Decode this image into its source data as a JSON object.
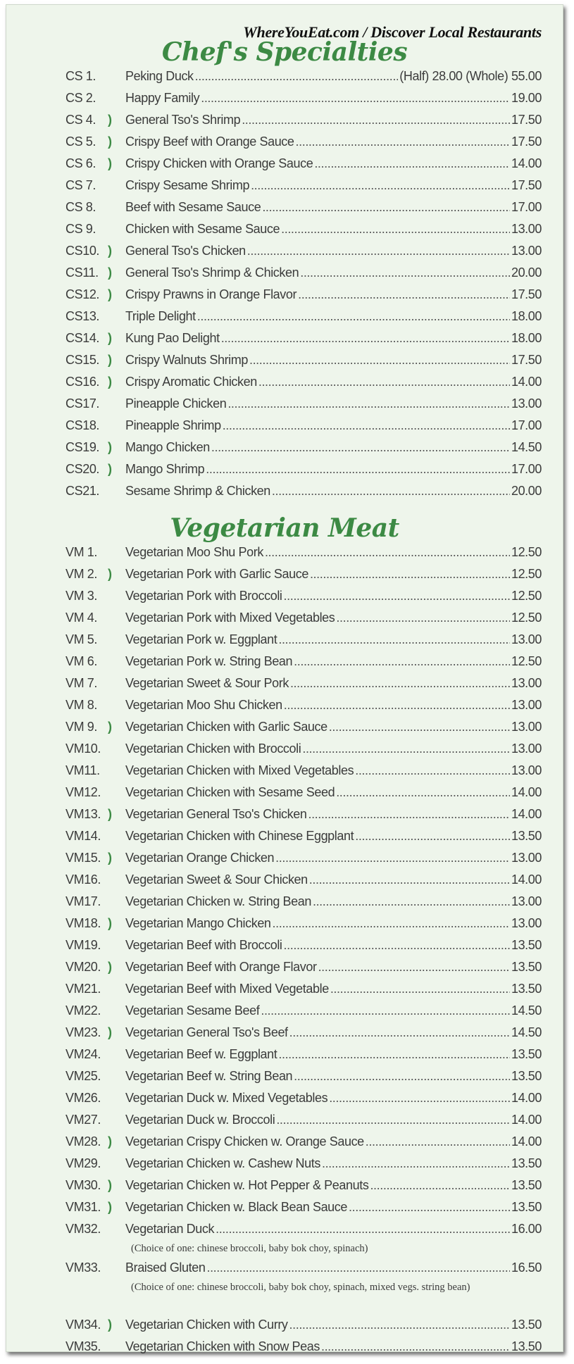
{
  "site_banner": "WhereYouEat.com / Discover Local Restaurants",
  "sections": [
    {
      "title": "Chef's Specialties",
      "items": [
        {
          "code": "CS  1.",
          "name": "Peking Duck",
          "price": "(Half) 28.00  (Whole) 55.00",
          "spicy": false
        },
        {
          "code": "CS  2.",
          "name": "Happy Family",
          "price": "19.00",
          "spicy": false
        },
        {
          "code": "CS  4.",
          "name": "General Tso's Shrimp",
          "price": "17.50",
          "spicy": true
        },
        {
          "code": "CS  5.",
          "name": "Crispy Beef with Orange Sauce",
          "price": "17.50",
          "spicy": true
        },
        {
          "code": "CS  6.",
          "name": "Crispy Chicken with Orange Sauce",
          "price": "14.00",
          "spicy": true
        },
        {
          "code": "CS  7.",
          "name": "Crispy Sesame Shrimp",
          "price": "17.50",
          "spicy": false
        },
        {
          "code": "CS  8.",
          "name": "Beef with Sesame Sauce",
          "price": "17.00",
          "spicy": false
        },
        {
          "code": "CS  9.",
          "name": "Chicken with Sesame Sauce",
          "price": "13.00",
          "spicy": false
        },
        {
          "code": "CS10.",
          "name": "General Tso's Chicken",
          "price": "13.00",
          "spicy": true
        },
        {
          "code": "CS11.",
          "name": "General Tso's Shrimp & Chicken",
          "price": "20.00",
          "spicy": true
        },
        {
          "code": "CS12.",
          "name": "Crispy Prawns in Orange Flavor",
          "price": "17.50",
          "spicy": true
        },
        {
          "code": "CS13.",
          "name": "Triple Delight",
          "price": "18.00",
          "spicy": false
        },
        {
          "code": "CS14.",
          "name": "Kung Pao Delight",
          "price": "18.00",
          "spicy": true
        },
        {
          "code": "CS15.",
          "name": "Crispy Walnuts Shrimp",
          "price": "17.50",
          "spicy": true
        },
        {
          "code": "CS16.",
          "name": "Crispy Aromatic Chicken",
          "price": "14.00",
          "spicy": true
        },
        {
          "code": "CS17.",
          "name": "Pineapple Chicken",
          "price": "13.00",
          "spicy": false
        },
        {
          "code": "CS18.",
          "name": "Pineapple Shrimp",
          "price": "17.00",
          "spicy": false
        },
        {
          "code": "CS19.",
          "name": "Mango Chicken",
          "price": "14.50",
          "spicy": true
        },
        {
          "code": "CS20.",
          "name": "Mango Shrimp",
          "price": "17.00",
          "spicy": true
        },
        {
          "code": "CS21.",
          "name": "Sesame Shrimp & Chicken",
          "price": "20.00",
          "spicy": false
        }
      ]
    },
    {
      "title": "Vegetarian Meat",
      "items": [
        {
          "code": "VM 1.",
          "name": "Vegetarian Moo Shu Pork",
          "price": "12.50",
          "spicy": false
        },
        {
          "code": "VM 2.",
          "name": "Vegetarian Pork with Garlic Sauce",
          "price": "12.50",
          "spicy": true
        },
        {
          "code": "VM 3.",
          "name": "Vegetarian Pork with Broccoli",
          "price": "12.50",
          "spicy": false
        },
        {
          "code": "VM 4.",
          "name": "Vegetarian Pork with Mixed Vegetables",
          "price": "12.50",
          "spicy": false
        },
        {
          "code": "VM 5.",
          "name": "Vegetarian Pork w. Eggplant",
          "price": "13.00",
          "spicy": false
        },
        {
          "code": "VM 6.",
          "name": "Vegetarian Pork w. String Bean",
          "price": "12.50",
          "spicy": false
        },
        {
          "code": "VM 7.",
          "name": "Vegetarian Sweet & Sour Pork",
          "price": "13.00",
          "spicy": false
        },
        {
          "code": "VM 8.",
          "name": "Vegetarian Moo Shu Chicken",
          "price": "13.00",
          "spicy": false
        },
        {
          "code": "VM 9.",
          "name": "Vegetarian Chicken with Garlic Sauce",
          "price": "13.00",
          "spicy": true
        },
        {
          "code": "VM10.",
          "name": "Vegetarian Chicken with Broccoli",
          "price": "13.00",
          "spicy": false
        },
        {
          "code": "VM11.",
          "name": "Vegetarian Chicken with Mixed Vegetables",
          "price": "13.00",
          "spicy": false
        },
        {
          "code": "VM12.",
          "name": "Vegetarian Chicken with Sesame Seed",
          "price": "14.00",
          "spicy": false
        },
        {
          "code": "VM13.",
          "name": "Vegetarian General Tso's Chicken",
          "price": "14.00",
          "spicy": true
        },
        {
          "code": "VM14.",
          "name": "Vegetarian Chicken with Chinese Eggplant",
          "price": "13.50",
          "spicy": false
        },
        {
          "code": "VM15.",
          "name": "Vegetarian Orange Chicken",
          "price": "13.00",
          "spicy": true
        },
        {
          "code": "VM16.",
          "name": "Vegetarian Sweet & Sour Chicken",
          "price": "14.00",
          "spicy": false
        },
        {
          "code": "VM17.",
          "name": "Vegetarian Chicken w. String Bean",
          "price": "13.00",
          "spicy": false
        },
        {
          "code": "VM18.",
          "name": "Vegetarian Mango Chicken",
          "price": "13.00",
          "spicy": true
        },
        {
          "code": "VM19.",
          "name": "Vegetarian Beef with Broccoli",
          "price": "13.50",
          "spicy": false
        },
        {
          "code": "VM20.",
          "name": "Vegetarian Beef with Orange Flavor",
          "price": "13.50",
          "spicy": true
        },
        {
          "code": "VM21.",
          "name": "Vegetarian Beef with Mixed Vegetable",
          "price": "13.50",
          "spicy": false
        },
        {
          "code": "VM22.",
          "name": "Vegetarian Sesame Beef",
          "price": "14.50",
          "spicy": false
        },
        {
          "code": "VM23.",
          "name": "Vegetarian General Tso's Beef",
          "price": "14.50",
          "spicy": true
        },
        {
          "code": "VM24.",
          "name": "Vegetarian Beef w. Eggplant",
          "price": "13.50",
          "spicy": false
        },
        {
          "code": "VM25.",
          "name": "Vegetarian Beef w. String Bean",
          "price": "13.50",
          "spicy": false
        },
        {
          "code": "VM26.",
          "name": "Vegetarian Duck w. Mixed Vegetables",
          "price": "14.00",
          "spicy": false
        },
        {
          "code": "VM27.",
          "name": "Vegetarian Duck w. Broccoli",
          "price": "14.00",
          "spicy": false
        },
        {
          "code": "VM28.",
          "name": "Vegetarian Crispy Chicken w. Orange Sauce",
          "price": "14.00",
          "spicy": true
        },
        {
          "code": "VM29.",
          "name": "Vegetarian Chicken w. Cashew Nuts",
          "price": "13.50",
          "spicy": false
        },
        {
          "code": "VM30.",
          "name": "Vegetarian Chicken w. Hot Pepper & Peanuts",
          "price": "13.50",
          "spicy": true
        },
        {
          "code": "VM31.",
          "name": "Vegetarian Chicken w. Black Bean Sauce",
          "price": "13.50",
          "spicy": true
        },
        {
          "code": "VM32.",
          "name": "Vegetarian Duck",
          "price": "16.00",
          "spicy": false,
          "note": "(Choice of one: chinese broccoli, baby bok choy, spinach)"
        },
        {
          "code": "VM33.",
          "name": "Braised Gluten",
          "price": "16.50",
          "spicy": false,
          "note": "(Choice of one: chinese broccoli, baby bok choy, spinach, mixed vegs. string bean)"
        },
        {
          "code": "VM34.",
          "name": "Vegetarian Chicken with Curry",
          "price": "13.50",
          "spicy": true
        },
        {
          "code": "VM35.",
          "name": "Vegetarian Chicken with Snow Peas",
          "price": "13.50",
          "spicy": false
        }
      ]
    }
  ],
  "icons": {
    "spicy": "chili-pepper-icon"
  },
  "colors": {
    "accent_green": "#3c8a44",
    "paper": "#eef5eb",
    "text": "#3b3b3b"
  }
}
